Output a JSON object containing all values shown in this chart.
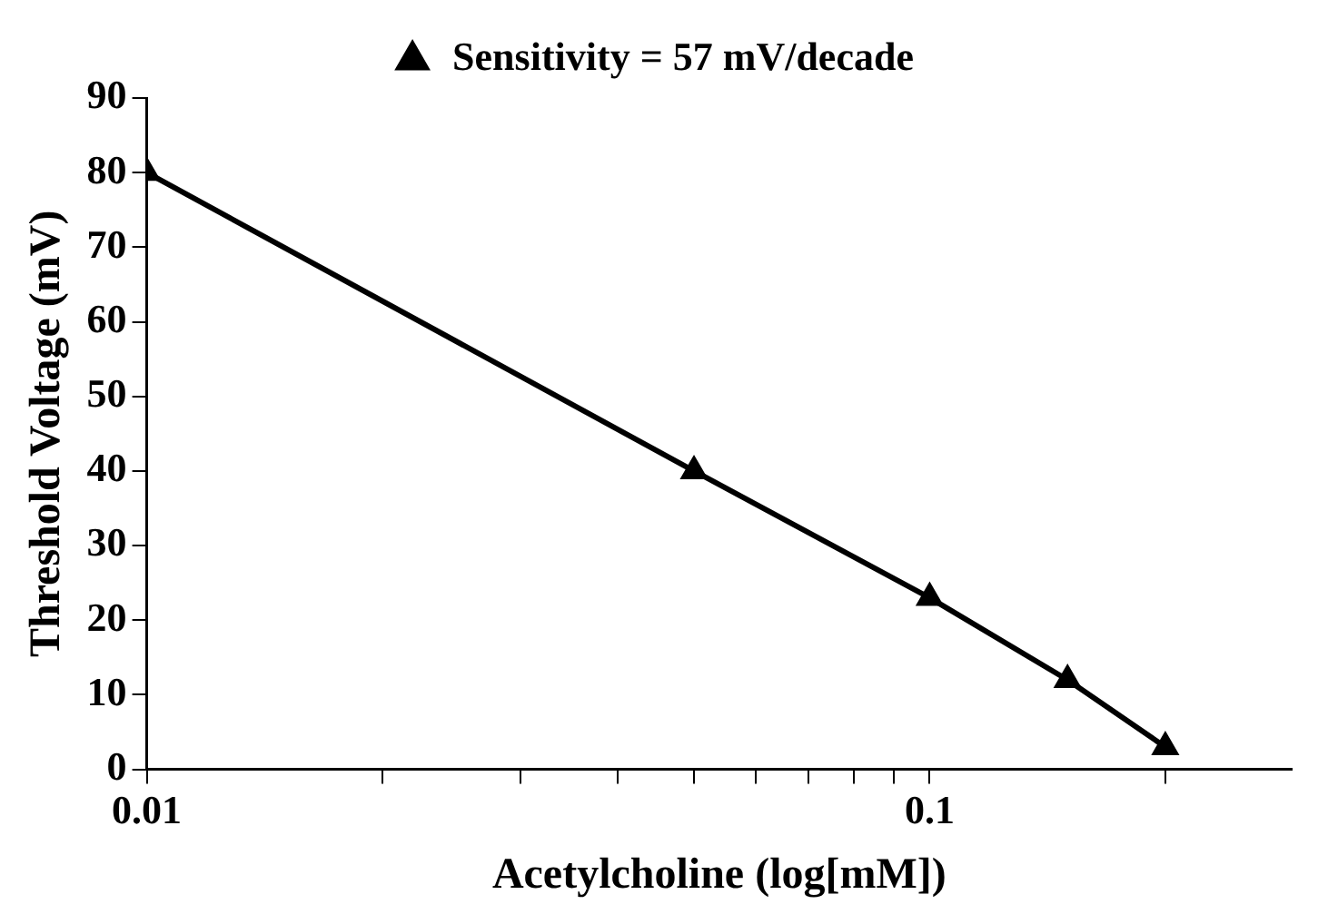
{
  "chart_data": {
    "type": "line",
    "xlabel": "Acetylcholine (log[mM])",
    "ylabel": "Threshold Voltage (mV)",
    "x": [
      0.01,
      0.05,
      0.1,
      0.15,
      0.2
    ],
    "series": [
      {
        "name": "Sensitivity = 57 mV/decade",
        "color": "#000000",
        "values": [
          80,
          40,
          23,
          12,
          3
        ]
      }
    ],
    "log": "x",
    "xlim": [
      0.01,
      0.29
    ],
    "xticks": [
      0.01,
      {
        "value": 0.02,
        "label": null
      },
      {
        "value": 0.03,
        "label": null
      },
      {
        "value": 0.04,
        "label": null
      },
      {
        "value": 0.05,
        "label": null
      },
      {
        "value": 0.06,
        "label": null
      },
      {
        "value": 0.07,
        "label": null
      },
      {
        "value": 0.08,
        "label": null
      },
      {
        "value": 0.09,
        "label": null
      },
      0.1,
      {
        "value": 0.2,
        "label": null
      }
    ],
    "ylim": [
      0,
      90
    ],
    "yticks": [
      0,
      10,
      20,
      30,
      40,
      50,
      60,
      70,
      80,
      90
    ],
    "grid": false,
    "legend": "top",
    "marker": "triangle",
    "line_style": "solid"
  }
}
